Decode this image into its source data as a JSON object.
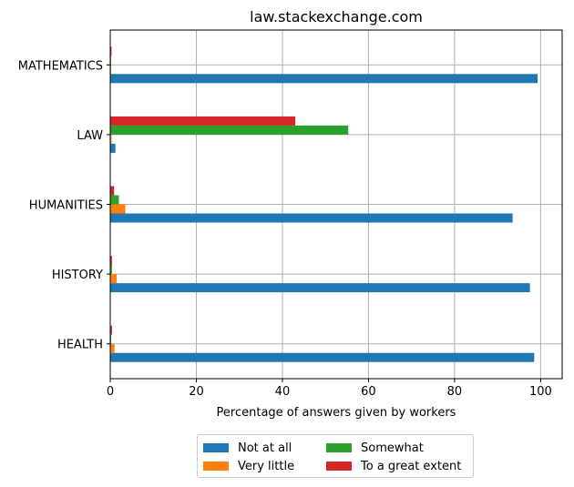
{
  "chart_data": {
    "type": "bar",
    "orientation": "horizontal",
    "title": "law.stackexchange.com",
    "xlabel": "Percentage of answers given by workers",
    "ylabel": "",
    "categories": [
      "HEALTH",
      "HISTORY",
      "HUMANITIES",
      "LAW",
      "MATHEMATICS"
    ],
    "xlim": [
      0,
      105
    ],
    "xticks": [
      0,
      20,
      40,
      60,
      80,
      100
    ],
    "grid": true,
    "legend_position": "bottom-center",
    "series": [
      {
        "name": "Not at all",
        "color": "#1f77b4",
        "values": [
          98.5,
          97.5,
          93.5,
          1.2,
          99.3
        ]
      },
      {
        "name": "Very little",
        "color": "#ff7f0e",
        "values": [
          1.0,
          1.5,
          3.5,
          0.3,
          0.2
        ]
      },
      {
        "name": "Somewhat",
        "color": "#2ca02c",
        "values": [
          0.2,
          0.4,
          2.0,
          55.3,
          0.2
        ]
      },
      {
        "name": "To a great extent",
        "color": "#d62728",
        "values": [
          0.4,
          0.4,
          0.9,
          43.0,
          0.3
        ]
      }
    ]
  }
}
